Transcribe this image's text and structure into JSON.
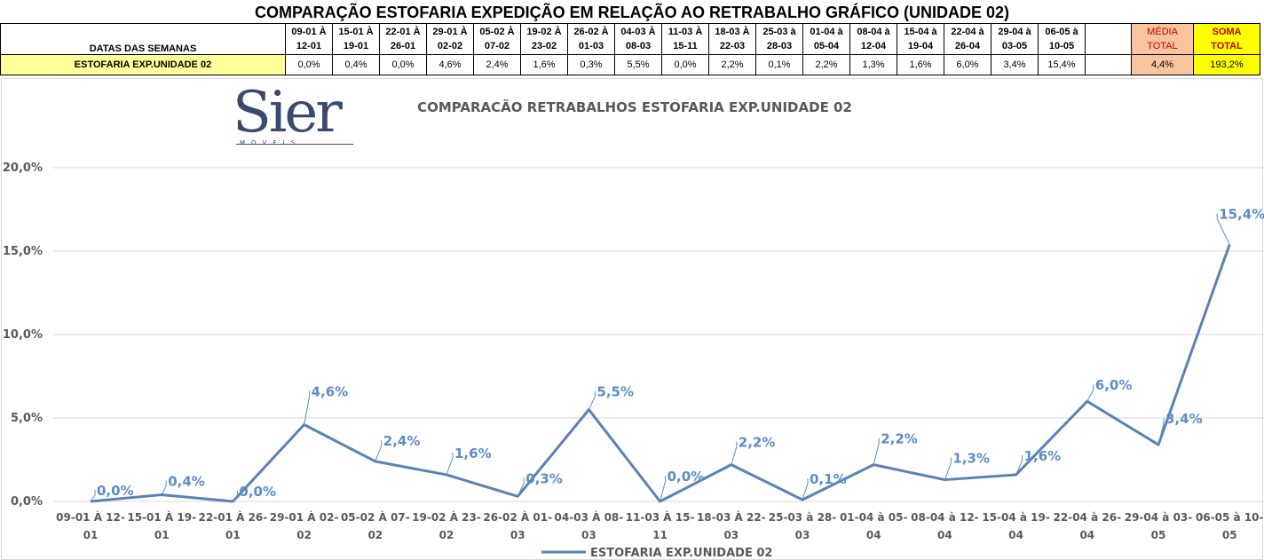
{
  "header": {
    "title": "COMPARAÇÃO ESTOFARIA EXPEDIÇÃO  EM RELAÇÃO AO RETRABALHO GRÁFICO (UNIDADE 02)",
    "row_header": "DATAS DAS SEMANAS",
    "row_label": "ESTOFARIA EXP.UNIDADE 02",
    "media_label_1": "MÉDIA",
    "media_label_2": "TOTAL",
    "soma_label_1": "SOMA",
    "soma_label_2": "TOTAL",
    "media_value": "4,4%",
    "soma_value": "193,2%"
  },
  "weeks": [
    {
      "l1": "09-01 À",
      "l2": "12-01",
      "value": "0,0%"
    },
    {
      "l1": "15-01 À",
      "l2": "19-01",
      "value": "0,4%"
    },
    {
      "l1": "22-01 À",
      "l2": "26-01",
      "value": "0,0%"
    },
    {
      "l1": "29-01 À",
      "l2": "02-02",
      "value": "4,6%"
    },
    {
      "l1": "05-02 À",
      "l2": "07-02",
      "value": "2,4%"
    },
    {
      "l1": "19-02 À",
      "l2": "23-02",
      "value": "1,6%"
    },
    {
      "l1": "26-02 À",
      "l2": "01-03",
      "value": "0,3%"
    },
    {
      "l1": "04-03 À",
      "l2": "08-03",
      "value": "5,5%"
    },
    {
      "l1": "11-03 À",
      "l2": "15-11",
      "value": "0,0%"
    },
    {
      "l1": "18-03 À",
      "l2": "22-03",
      "value": "2,2%"
    },
    {
      "l1": "25-03 à",
      "l2": "28-03",
      "value": "0,1%"
    },
    {
      "l1": "01-04 à",
      "l2": "05-04",
      "value": "2,2%"
    },
    {
      "l1": "08-04 à",
      "l2": "12-04",
      "value": "1,3%"
    },
    {
      "l1": "15-04 à",
      "l2": "19-04",
      "value": "1,6%"
    },
    {
      "l1": "22-04 à",
      "l2": "26-04",
      "value": "6,0%"
    },
    {
      "l1": "29-04 à",
      "l2": "03-05",
      "value": "3,4%"
    },
    {
      "l1": "06-05 à",
      "l2": "10-05",
      "value": "15,4%"
    }
  ],
  "logo": {
    "text": "Sier",
    "subtext": "MÓVEIS"
  },
  "chart_data": {
    "type": "line",
    "title": "COMPARACÃO RETRABALHOS  ESTOFARIA EXP.UNIDADE 02",
    "categories": [
      [
        "09-01 À 12-",
        "01"
      ],
      [
        "15-01 À 19-",
        "01"
      ],
      [
        "22-01 À 26-",
        "01"
      ],
      [
        "29-01 À 02-",
        "02"
      ],
      [
        "05-02 À 07-",
        "02"
      ],
      [
        "19-02 À 23-",
        "02"
      ],
      [
        "26-02 À 01-",
        "03"
      ],
      [
        "04-03 À 08-",
        "03"
      ],
      [
        "11-03 À 15-",
        "11"
      ],
      [
        "18-03 À 22-",
        "03"
      ],
      [
        "25-03 à 28-",
        "03"
      ],
      [
        "01-04 à 05-",
        "04"
      ],
      [
        "08-04 à 12-",
        "04"
      ],
      [
        "15-04 à 19-",
        "04"
      ],
      [
        "22-04 à 26-",
        "04"
      ],
      [
        "29-04 à 03-",
        "05"
      ],
      [
        "06-05 à 10-",
        "05"
      ]
    ],
    "series": [
      {
        "name": "ESTOFARIA EXP.UNIDADE 02",
        "values": [
          0.0,
          0.4,
          0.0,
          4.6,
          2.4,
          1.6,
          0.3,
          5.5,
          0.0,
          2.2,
          0.1,
          2.2,
          1.3,
          1.6,
          6.0,
          3.4,
          15.4
        ],
        "labels": [
          "0,0%",
          "0,4%",
          "0,0%",
          "4,6%",
          "2,4%",
          "1,6%",
          "0,3%",
          "5,5%",
          "0,0%",
          "2,2%",
          "0,1%",
          "2,2%",
          "1,3%",
          "1,6%",
          "6,0%",
          "3,4%",
          "15,4%"
        ]
      }
    ],
    "yticks": [
      "0,0%",
      "5,0%",
      "10,0%",
      "15,0%",
      "20,0%"
    ],
    "ytick_values": [
      0,
      5,
      10,
      15,
      20
    ],
    "ylim": [
      0,
      20
    ],
    "grid": true,
    "legend": "bottom",
    "colors": {
      "line": "#5b82b3",
      "labels": "#5b8cc6",
      "grid": "#d9d9d9",
      "axis_text": "#595959"
    }
  }
}
